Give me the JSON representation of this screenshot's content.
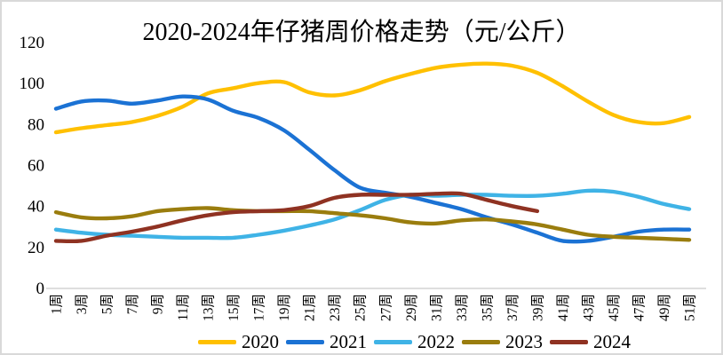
{
  "window": {
    "background": "#FFFFFF",
    "border_color": "#D9D9D9"
  },
  "chart_data": {
    "type": "line",
    "title": "2020-2024年仔猪周价格走势（元/公斤）",
    "xlabel": "",
    "ylabel": "",
    "unit_label_in_title": "元/公斤",
    "grid": false,
    "smooth_lines": true,
    "legend_position": "bottom",
    "axis_line_color": "#D9D9D9",
    "ylim": [
      0,
      120
    ],
    "y_ticks": [
      0,
      20,
      40,
      60,
      80,
      100,
      120
    ],
    "categories": [
      "1周",
      "3周",
      "5周",
      "7周",
      "9周",
      "11周",
      "13周",
      "15周",
      "17周",
      "19周",
      "21周",
      "23周",
      "25周",
      "27周",
      "29周",
      "31周",
      "33周",
      "35周",
      "37周",
      "39周",
      "41周",
      "43周",
      "45周",
      "47周",
      "49周",
      "51周"
    ],
    "series": [
      {
        "name": "2020",
        "color": "#FFC000",
        "values": [
          76,
          78,
          79.5,
          81,
          84,
          88.5,
          95,
          97.5,
          100,
          100.5,
          95.5,
          94,
          96.5,
          101,
          104.5,
          107.5,
          109,
          109.5,
          108.5,
          105,
          98.5,
          91,
          84.5,
          81,
          80.5,
          83.5
        ]
      },
      {
        "name": "2021",
        "color": "#1B72D4",
        "values": [
          87.5,
          91,
          91.5,
          90,
          91.5,
          93.5,
          92,
          86.5,
          83,
          77,
          67.5,
          57.5,
          49,
          46.5,
          44.5,
          41.5,
          38.5,
          34.5,
          31,
          27,
          23,
          23,
          25,
          27.5,
          28.5,
          28.5
        ]
      },
      {
        "name": "2022",
        "color": "#3FB3E6",
        "values": [
          28.5,
          27,
          26,
          25.5,
          25,
          24.5,
          24.5,
          24.5,
          26,
          28,
          30.5,
          33.5,
          38,
          43,
          45.5,
          45,
          45.5,
          45.5,
          45,
          45,
          46,
          47.5,
          47,
          44.5,
          41,
          38.5
        ]
      },
      {
        "name": "2023",
        "color": "#9A7D0E",
        "values": [
          37,
          34.5,
          34,
          35,
          37.5,
          38.5,
          39,
          38,
          37.5,
          37.5,
          37.5,
          36.5,
          35.5,
          34,
          32,
          31.5,
          33,
          33.5,
          32.5,
          31,
          28.5,
          26,
          25,
          24.5,
          24,
          23.5
        ]
      },
      {
        "name": "2024",
        "color": "#8F3222",
        "values": [
          23,
          23,
          25.5,
          27.5,
          30,
          33,
          35.5,
          37,
          37.5,
          38,
          40,
          44,
          45.5,
          45.5,
          45.5,
          46,
          46,
          43,
          40,
          37.5,
          null,
          null,
          null,
          null,
          null,
          null
        ]
      }
    ]
  }
}
